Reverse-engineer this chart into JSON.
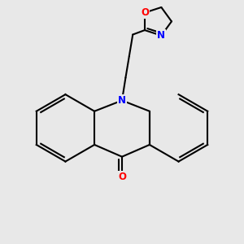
{
  "background_color": "#e8e8e8",
  "bond_color": "#000000",
  "N_color": "#0000ff",
  "O_color": "#ff0000",
  "linewidth": 1.5,
  "figsize": [
    3.0,
    3.0
  ],
  "dpi": 100,
  "xlim": [
    0,
    10
  ],
  "ylim": [
    0,
    10
  ]
}
